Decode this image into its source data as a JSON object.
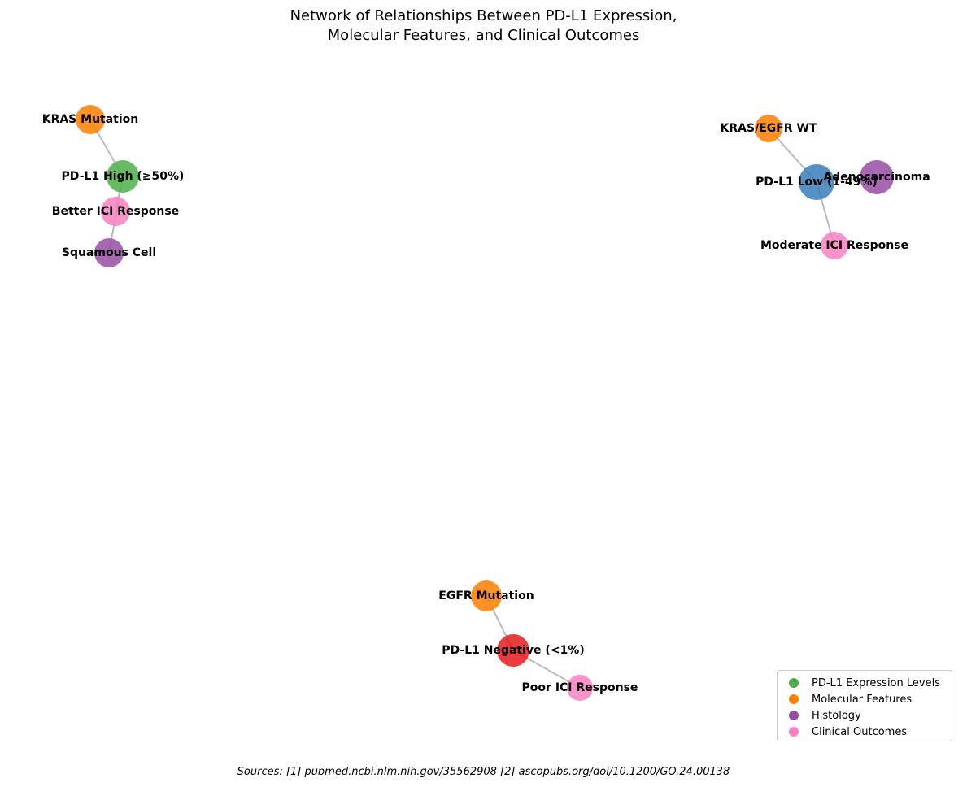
{
  "title": {
    "line1": "Network of Relationships Between PD-L1 Expression,",
    "line2": "Molecular Features, and Clinical Outcomes"
  },
  "colors": {
    "pdl1_high": "#4daf4a",
    "pdl1_low": "#377eb8",
    "pdl1_negative": "#e41a1c",
    "molecular": "#ff7f00",
    "histology": "#984ea3",
    "clinical": "#f781bf",
    "edge": "#bbbbbb"
  },
  "nodes": [
    {
      "id": "kras_mut",
      "label": "KRAS Mutation",
      "category": "molecular"
    },
    {
      "id": "pdl1_high",
      "label": "PD-L1 High (≥50%)",
      "category": "pdl1_high"
    },
    {
      "id": "better_ici",
      "label": "Better ICI Response",
      "category": "clinical"
    },
    {
      "id": "squamous",
      "label": "Squamous Cell",
      "category": "histology"
    },
    {
      "id": "kras_egfr_wt",
      "label": "KRAS/EGFR WT",
      "category": "molecular"
    },
    {
      "id": "pdl1_low",
      "label": "PD-L1 Low (1-49%)",
      "category": "pdl1_low"
    },
    {
      "id": "adeno",
      "label": "Adenocarcinoma",
      "category": "histology"
    },
    {
      "id": "moderate_ici",
      "label": "Moderate ICI Response",
      "category": "clinical"
    },
    {
      "id": "egfr_mut",
      "label": "EGFR Mutation",
      "category": "molecular"
    },
    {
      "id": "pdl1_neg",
      "label": "PD-L1 Negative (<1%)",
      "category": "pdl1_negative"
    },
    {
      "id": "poor_ici",
      "label": "Poor ICI Response",
      "category": "clinical"
    }
  ],
  "edges": [
    {
      "source": "kras_mut",
      "target": "pdl1_high"
    },
    {
      "source": "pdl1_high",
      "target": "better_ici"
    },
    {
      "source": "pdl1_high",
      "target": "squamous"
    },
    {
      "source": "kras_egfr_wt",
      "target": "pdl1_low"
    },
    {
      "source": "pdl1_low",
      "target": "adeno"
    },
    {
      "source": "pdl1_low",
      "target": "moderate_ici"
    },
    {
      "source": "egfr_mut",
      "target": "pdl1_neg"
    },
    {
      "source": "pdl1_neg",
      "target": "poor_ici"
    }
  ],
  "legend": [
    {
      "label": "PD-L1 Expression Levels",
      "color": "#4daf4a"
    },
    {
      "label": "Molecular Features",
      "color": "#ff7f00"
    },
    {
      "label": "Histology",
      "color": "#984ea3"
    },
    {
      "label": "Clinical Outcomes",
      "color": "#f781bf"
    }
  ],
  "sources": "Sources: [1] pubmed.ncbi.nlm.nih.gov/35562908  [2] ascopubs.org/doi/10.1200/GO.24.00138"
}
